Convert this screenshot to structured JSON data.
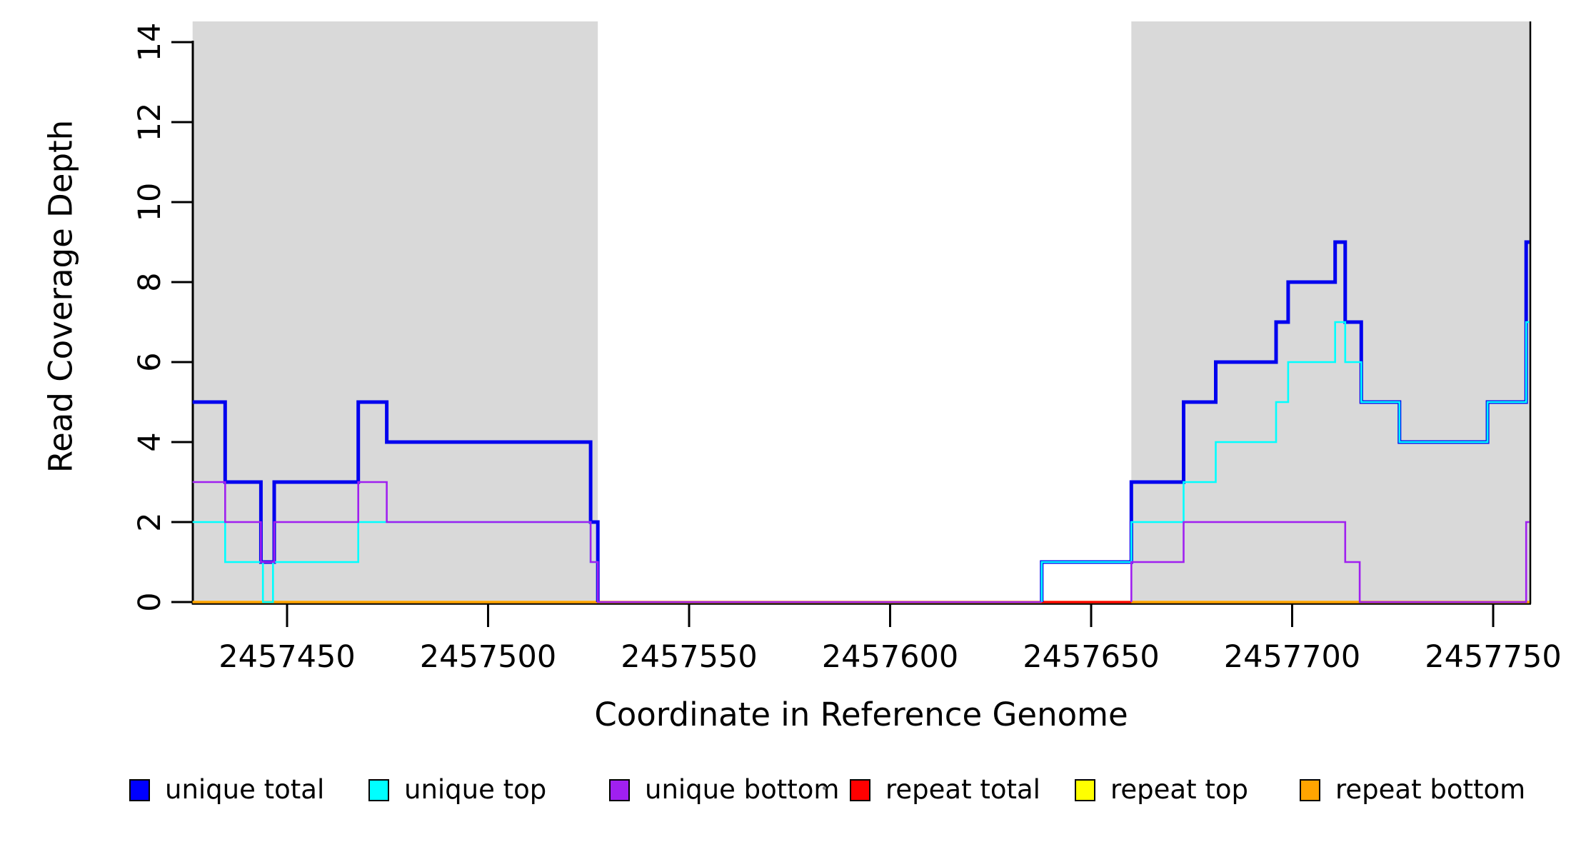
{
  "chart_data": {
    "type": "line",
    "step": true,
    "title": "",
    "xlabel": "Coordinate in Reference Genome",
    "ylabel": "Read Coverage Depth",
    "xlim": [
      2457426.5,
      2457759.0
    ],
    "ylim": [
      0,
      14
    ],
    "grid": false,
    "x_ticks": {
      "values": [
        2457450,
        2457500,
        2457550,
        2457600,
        2457650,
        2457700,
        2457750
      ],
      "labels": [
        "2457450",
        "2457500",
        "2457550",
        "2457600",
        "2457650",
        "2457700",
        "2457750"
      ]
    },
    "y_ticks": {
      "values": [
        0,
        2,
        4,
        6,
        8,
        10,
        12,
        14
      ],
      "labels": [
        "0",
        "2",
        "4",
        "6",
        "8",
        "10",
        "12",
        "14"
      ]
    },
    "shaded_regions": [
      {
        "x1": 2457426.5,
        "x2": 2457527.3,
        "color": "#D9D9D9"
      },
      {
        "x1": 2457660.0,
        "x2": 2457759.0,
        "color": "#D9D9D9"
      }
    ],
    "series": [
      {
        "name": "repeat top",
        "color": "#FFFF00",
        "width": 2,
        "paths": [
          {
            "points": [
              [
                2457426.5,
                0
              ]
            ],
            "end": 2457759.0
          }
        ]
      },
      {
        "name": "repeat bottom",
        "color": "#FFA500",
        "width": 3.5,
        "paths": [
          {
            "points": [
              [
                2457426.5,
                0
              ]
            ],
            "end": 2457759.0
          }
        ]
      },
      {
        "name": "repeat total",
        "color": "#FF0000",
        "width": 3,
        "paths": [
          {
            "points": [
              [
                2457637.7,
                0
              ]
            ],
            "end": 2457660.0
          }
        ]
      },
      {
        "name": "unique total",
        "color": "#0000EE",
        "width": 5,
        "paths": [
          {
            "points": [
              [
                2457426.5,
                5
              ],
              [
                2457434.6,
                3
              ],
              [
                2457443.5,
                1
              ],
              [
                2457446.8,
                3
              ],
              [
                2457467.7,
                5
              ],
              [
                2457474.8,
                4
              ],
              [
                2457525.5,
                2
              ],
              [
                2457527.3,
                0
              ]
            ],
            "end": 2457527.3
          },
          {
            "points": [
              [
                2457637.7,
                0
              ],
              [
                2457637.7,
                1
              ],
              [
                2457660.0,
                3
              ],
              [
                2457673.0,
                5
              ],
              [
                2457681.0,
                6
              ],
              [
                2457696.0,
                7
              ],
              [
                2457699.0,
                8
              ],
              [
                2457710.7,
                9
              ],
              [
                2457713.2,
                7
              ],
              [
                2457717.2,
                5
              ],
              [
                2457726.7,
                4
              ],
              [
                2457748.6,
                5
              ],
              [
                2457758.2,
                9
              ]
            ],
            "end": 2457759.0
          }
        ]
      },
      {
        "name": "unique top",
        "color": "#00FFFF",
        "width": 2.6,
        "paths": [
          {
            "points": [
              [
                2457426.5,
                2
              ],
              [
                2457434.6,
                1
              ],
              [
                2457444.0,
                0
              ],
              [
                2457446.5,
                1
              ],
              [
                2457467.7,
                2
              ],
              [
                2457525.5,
                1
              ],
              [
                2457527.3,
                0
              ]
            ],
            "end": 2457527.3
          },
          {
            "points": [
              [
                2457637.7,
                0
              ],
              [
                2457637.7,
                1
              ],
              [
                2457660.0,
                2
              ],
              [
                2457673.0,
                3
              ],
              [
                2457681.0,
                4
              ],
              [
                2457696.0,
                5
              ],
              [
                2457699.0,
                6
              ],
              [
                2457710.7,
                7
              ],
              [
                2457713.2,
                6
              ],
              [
                2457717.2,
                5
              ],
              [
                2457726.7,
                4
              ],
              [
                2457748.6,
                5
              ],
              [
                2457758.2,
                7
              ]
            ],
            "end": 2457759.0
          }
        ]
      },
      {
        "name": "unique bottom",
        "color": "#A020F0",
        "width": 2.6,
        "paths": [
          {
            "points": [
              [
                2457426.5,
                3
              ],
              [
                2457434.6,
                2
              ],
              [
                2457443.5,
                1
              ],
              [
                2457446.8,
                2
              ],
              [
                2457467.7,
                3
              ],
              [
                2457474.8,
                2
              ],
              [
                2457525.5,
                1
              ],
              [
                2457527.3,
                0
              ]
            ],
            "end": 2457637.7
          },
          {
            "points": [
              [
                2457660.0,
                0
              ],
              [
                2457660.0,
                1
              ],
              [
                2457673.0,
                2
              ],
              [
                2457713.2,
                1
              ],
              [
                2457716.8,
                0
              ],
              [
                2457758.2,
                2
              ]
            ],
            "end": 2457759.0
          }
        ]
      }
    ],
    "legend": [
      {
        "label": "unique total",
        "color": "#0000FF"
      },
      {
        "label": "unique top",
        "color": "#00FFFF"
      },
      {
        "label": "unique bottom",
        "color": "#A020F0"
      },
      {
        "label": "repeat total",
        "color": "#FF0000"
      },
      {
        "label": "repeat top",
        "color": "#FFFF00"
      },
      {
        "label": "repeat bottom",
        "color": "#FFA500"
      }
    ],
    "legend_position": "bottom"
  }
}
